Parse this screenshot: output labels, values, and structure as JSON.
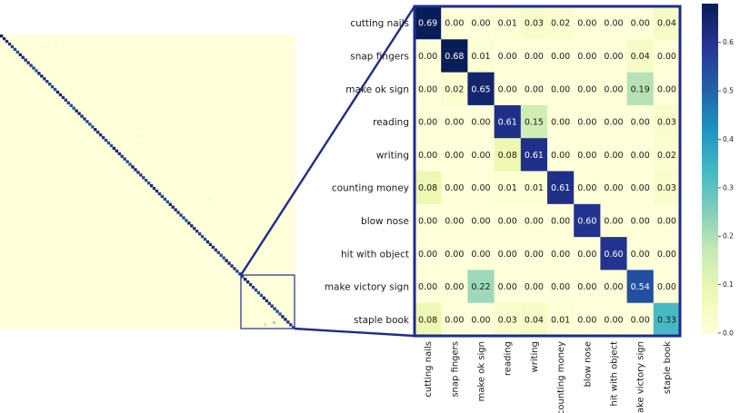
{
  "chart_data": {
    "type": "heatmap",
    "title": "",
    "xlabel": "",
    "ylabel": "",
    "colormap": "YlGnBu",
    "colorbar": {
      "range": [
        0.0,
        0.68
      ],
      "ticks": [
        0.0,
        0.1,
        0.2,
        0.3,
        0.4,
        0.5,
        0.6
      ],
      "tick_labels": [
        "0.0",
        "0.1",
        "0.2",
        "0.3",
        "0.4",
        "0.5",
        "0.6"
      ]
    },
    "overview": {
      "description_free": true,
      "diagonal_value": 0.65,
      "background_value": 0.0,
      "zoom_box": "bottom-right"
    },
    "row_labels": [
      "cutting nails",
      "snap fingers",
      "make ok sign",
      "reading",
      "writing",
      "counting money",
      "blow nose",
      "hit with object",
      "make victory sign",
      "staple book"
    ],
    "col_labels": [
      "cutting nails",
      "snap fingers",
      "make ok sign",
      "reading",
      "writing",
      "counting money",
      "blow nose",
      "hit with object",
      "make victory sign",
      "staple book"
    ],
    "values": [
      [
        0.69,
        0.0,
        0.0,
        0.01,
        0.03,
        0.02,
        0.0,
        0.0,
        0.0,
        0.04
      ],
      [
        0.0,
        0.68,
        0.01,
        0.0,
        0.0,
        0.0,
        0.0,
        0.0,
        0.04,
        0.0
      ],
      [
        0.0,
        0.02,
        0.65,
        0.0,
        0.0,
        0.0,
        0.0,
        0.0,
        0.19,
        0.0
      ],
      [
        0.0,
        0.0,
        0.0,
        0.61,
        0.15,
        0.0,
        0.0,
        0.0,
        0.0,
        0.03
      ],
      [
        0.0,
        0.0,
        0.0,
        0.08,
        0.61,
        0.0,
        0.0,
        0.0,
        0.0,
        0.02
      ],
      [
        0.08,
        0.0,
        0.0,
        0.01,
        0.01,
        0.61,
        0.0,
        0.0,
        0.0,
        0.03
      ],
      [
        0.0,
        0.0,
        0.0,
        0.0,
        0.0,
        0.0,
        0.6,
        0.0,
        0.0,
        0.0
      ],
      [
        0.0,
        0.0,
        0.0,
        0.0,
        0.0,
        0.0,
        0.0,
        0.6,
        0.0,
        0.0
      ],
      [
        0.0,
        0.0,
        0.22,
        0.0,
        0.0,
        0.0,
        0.0,
        0.0,
        0.54,
        0.0
      ],
      [
        0.08,
        0.0,
        0.0,
        0.03,
        0.04,
        0.01,
        0.0,
        0.0,
        0.0,
        0.33
      ]
    ]
  },
  "colors": {
    "zoom_outline": "#1f2b8f",
    "overview_background": "#ffffd9",
    "dark_text": "#1a1a1a",
    "light_text": "#ffffff"
  }
}
